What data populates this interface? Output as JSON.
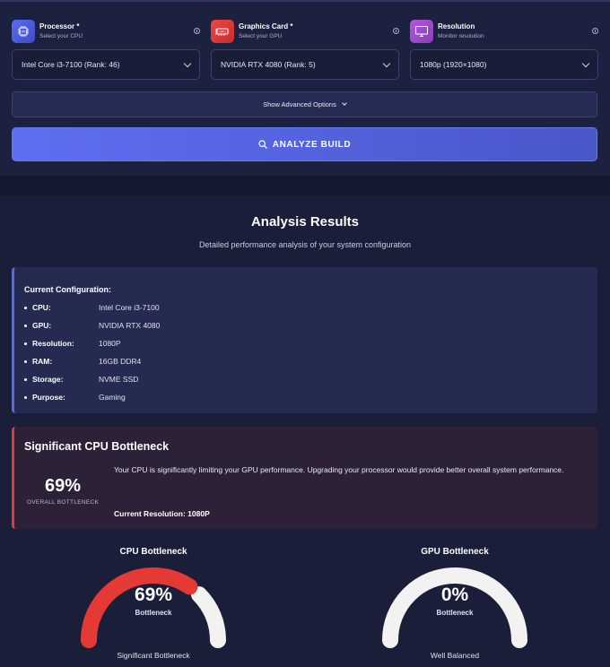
{
  "form": {
    "processor": {
      "label": "Processor *",
      "sub": "Select your CPU",
      "icon": "cpu-icon",
      "value": "Intel Core i3-7100 (Rank: 46)"
    },
    "graphics": {
      "label": "Graphics Card *",
      "sub": "Select your GPU",
      "icon": "gpu-icon",
      "value": "NVIDIA RTX 4080 (Rank: 5)"
    },
    "resolution": {
      "label": "Resolution",
      "sub": "Monitor resolution",
      "icon": "monitor-icon",
      "value": "1080p (1920×1080)"
    },
    "advanced_label": "Show Advanced Options",
    "analyze_label": "ANALYZE BUILD"
  },
  "results": {
    "title": "Analysis Results",
    "subtitle": "Detailed performance analysis of your system configuration",
    "config": {
      "title": "Current Configuration:",
      "rows": [
        {
          "key": "CPU:",
          "value": "Intel Core i3-7100"
        },
        {
          "key": "GPU:",
          "value": "NVIDIA RTX 4080"
        },
        {
          "key": "Resolution:",
          "value": "1080P"
        },
        {
          "key": "RAM:",
          "value": "16GB DDR4"
        },
        {
          "key": "Storage:",
          "value": "NVME SSD"
        },
        {
          "key": "Purpose:",
          "value": "Gaming"
        }
      ]
    },
    "bottleneck": {
      "title": "Significant CPU Bottleneck",
      "percent": "69%",
      "percent_label": "OVERALL BOTTLENECK",
      "description": "Your CPU is significantly limiting your GPU performance. Upgrading your processor would provide better overall system performance.",
      "resolution_note": "Current Resolution: 1080P"
    },
    "gauges": [
      {
        "title": "CPU Bottleneck",
        "value": 69,
        "percent": "69%",
        "sub": "Bottleneck",
        "status": "Significant Bottleneck",
        "color": "#e53935"
      },
      {
        "title": "GPU Bottleneck",
        "value": 0,
        "percent": "0%",
        "sub": "Bottleneck",
        "status": "Well Balanced",
        "color": "#e53935"
      }
    ]
  },
  "colors": {
    "accent": "#5e6ff1",
    "danger": "#e03b3b",
    "track": "#f2f2f2"
  }
}
